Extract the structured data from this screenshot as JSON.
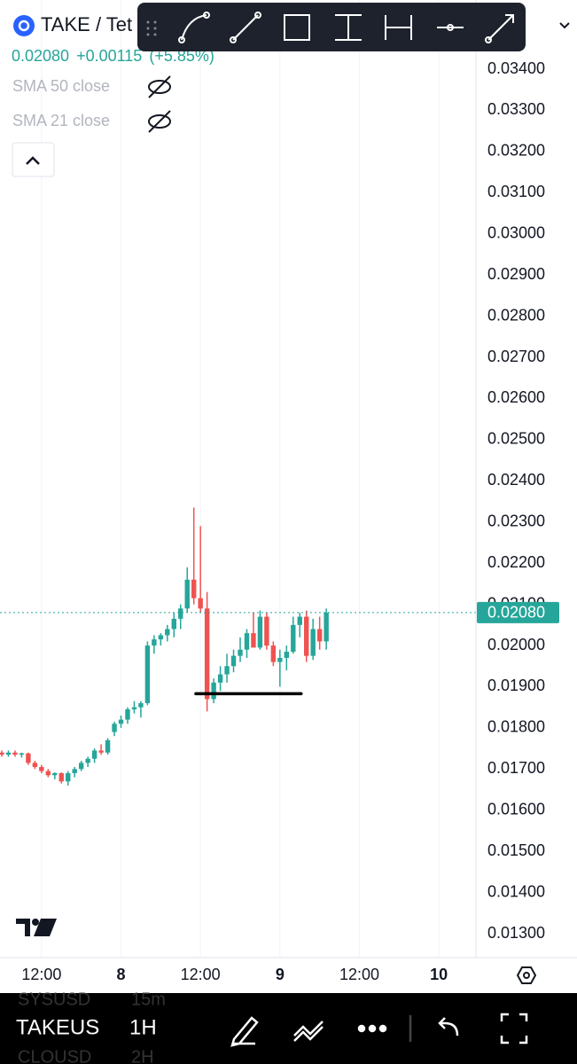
{
  "chart_data": {
    "type": "candlestick",
    "symbol": "TAKE / Tet",
    "ohlc_change": [
      "0.02080",
      "+0.00115",
      "(+5.85%)"
    ],
    "indicators": [
      "SMA 50 close",
      "SMA 21 close"
    ],
    "up_color": "#26a69a",
    "down_color": "#ef5350",
    "open": [
      0.0174,
      0.01735,
      0.0174,
      0.01735,
      0.01738,
      0.01715,
      0.01705,
      0.01695,
      0.01685,
      0.0169,
      0.0167,
      0.0169,
      0.017,
      0.01715,
      0.01725,
      0.01745,
      0.0174,
      0.0179,
      0.0181,
      0.0182,
      0.01845,
      0.0185,
      0.0186,
      0.02,
      0.02015,
      0.02025,
      0.0204,
      0.02065,
      0.0209,
      0.0216,
      0.02115,
      0.0209,
      0.0187,
      0.0191,
      0.0193,
      0.0195,
      0.01975,
      0.0199,
      0.0203,
      0.01995,
      0.0207,
      0.02,
      0.0196,
      0.0197,
      0.01985,
      0.0205,
      0.0207,
      0.01975,
      0.0204,
      0.0201
    ],
    "high": [
      0.01745,
      0.01745,
      0.01745,
      0.0174,
      0.0174,
      0.0172,
      0.0171,
      0.017,
      0.01692,
      0.01692,
      0.01695,
      0.01705,
      0.0172,
      0.0173,
      0.0175,
      0.0176,
      0.01775,
      0.01815,
      0.0183,
      0.0185,
      0.01865,
      0.01865,
      0.0201,
      0.02025,
      0.0203,
      0.0205,
      0.0208,
      0.021,
      0.0219,
      0.02335,
      0.0229,
      0.0213,
      0.0192,
      0.0195,
      0.0198,
      0.0199,
      0.0202,
      0.0204,
      0.0208,
      0.02085,
      0.0208,
      0.0201,
      0.0199,
      0.02,
      0.0207,
      0.0208,
      0.02085,
      0.02065,
      0.0207,
      0.0209
    ],
    "low": [
      0.0173,
      0.0173,
      0.0173,
      0.01728,
      0.0171,
      0.017,
      0.0169,
      0.0168,
      0.01675,
      0.01665,
      0.0166,
      0.0168,
      0.01695,
      0.01705,
      0.01715,
      0.01735,
      0.01735,
      0.0178,
      0.018,
      0.0181,
      0.01835,
      0.01825,
      0.01855,
      0.0198,
      0.02,
      0.0201,
      0.0202,
      0.0204,
      0.0208,
      0.021,
      0.0208,
      0.0184,
      0.0186,
      0.0189,
      0.0191,
      0.01935,
      0.0196,
      0.0197,
      0.02,
      0.0199,
      0.0199,
      0.0195,
      0.019,
      0.0194,
      0.0198,
      0.0202,
      0.0196,
      0.01965,
      0.0199,
      0.0199
    ],
    "close": [
      0.01735,
      0.0174,
      0.01735,
      0.01738,
      0.01715,
      0.01705,
      0.01695,
      0.01685,
      0.0169,
      0.0167,
      0.0169,
      0.017,
      0.01715,
      0.01725,
      0.01745,
      0.0174,
      0.0177,
      0.0181,
      0.0182,
      0.01845,
      0.0185,
      0.0186,
      0.02,
      0.02015,
      0.02025,
      0.0204,
      0.02065,
      0.0209,
      0.0216,
      0.02115,
      0.0209,
      0.0187,
      0.0191,
      0.0193,
      0.0195,
      0.01975,
      0.0199,
      0.0203,
      0.01995,
      0.0207,
      0.02,
      0.0196,
      0.0197,
      0.01985,
      0.0205,
      0.0207,
      0.01975,
      0.0204,
      0.0201,
      0.0208
    ],
    "last_price": {
      "value": 0.0208,
      "label": "0.02080"
    },
    "drawn_line": {
      "value": 0.01883,
      "from": 29.3,
      "to": 45.2
    },
    "xlim": [
      -0.27,
      71.6
    ],
    "xticks": [
      {
        "value": 6,
        "label": "12:00"
      },
      {
        "value": 18,
        "label": "8"
      },
      {
        "value": 30,
        "label": "12:00"
      },
      {
        "value": 42,
        "label": "9"
      },
      {
        "value": 54,
        "label": "12:00"
      },
      {
        "value": 66,
        "label": "10"
      }
    ],
    "ylim": [
      0.01242,
      0.03568
    ],
    "yticks": [
      {
        "value": 0.013,
        "label": "0.01300"
      },
      {
        "value": 0.014,
        "label": "0.01400"
      },
      {
        "value": 0.015,
        "label": "0.01500"
      },
      {
        "value": 0.016,
        "label": "0.01600"
      },
      {
        "value": 0.017,
        "label": "0.01700"
      },
      {
        "value": 0.018,
        "label": "0.01800"
      },
      {
        "value": 0.019,
        "label": "0.01900"
      },
      {
        "value": 0.02,
        "label": "0.02000"
      },
      {
        "value": 0.021,
        "label": "0.02100"
      },
      {
        "value": 0.022,
        "label": "0.02200"
      },
      {
        "value": 0.023,
        "label": "0.02300"
      },
      {
        "value": 0.024,
        "label": "0.02400"
      },
      {
        "value": 0.025,
        "label": "0.02500"
      },
      {
        "value": 0.026,
        "label": "0.02600"
      },
      {
        "value": 0.027,
        "label": "0.02700"
      },
      {
        "value": 0.028,
        "label": "0.02800"
      },
      {
        "value": 0.029,
        "label": "0.02900"
      },
      {
        "value": 0.03,
        "label": "0.03000"
      },
      {
        "value": 0.031,
        "label": "0.03100"
      },
      {
        "value": 0.032,
        "label": "0.03200"
      },
      {
        "value": 0.033,
        "label": "0.03300"
      },
      {
        "value": 0.034,
        "label": "0.03400"
      }
    ],
    "grid": true
  },
  "toolbar": {
    "symbol": "TAKEUS",
    "interval": "1H",
    "ghost": [
      "SYSUSD",
      "15m",
      "CLOUSD",
      "2H"
    ]
  }
}
